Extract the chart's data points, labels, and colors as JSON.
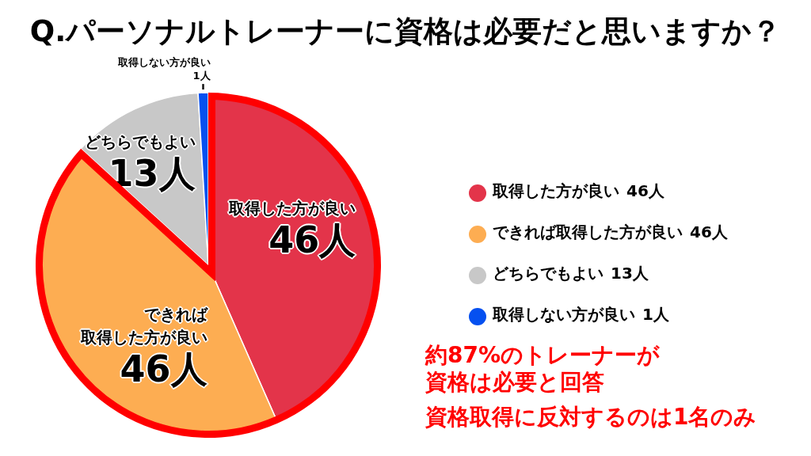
{
  "chart_data": {
    "type": "pie",
    "title": "Q.パーソナルトレーナーに資格は必要だと思いますか？",
    "categories": [
      "取得した方が良い",
      "できれば取得した方が良い",
      "どちらでもよい",
      "取得しない方が良い"
    ],
    "values": [
      46,
      46,
      13,
      1
    ],
    "colors": [
      "#e3344a",
      "#fdad52",
      "#c8c8c8",
      "#0550f0"
    ],
    "value_labels": [
      "46人",
      "46人",
      "13人",
      "1人"
    ],
    "legend": "right",
    "annotations": [
      "約87%のトレーナーが資格は必要と回答",
      "資格取得に反対するのは1名のみ"
    ]
  }
}
